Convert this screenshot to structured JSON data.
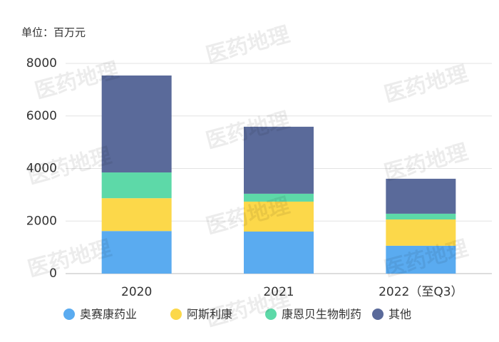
{
  "chart_data": {
    "type": "stacked_bar",
    "unit_label": "单位：百万元",
    "watermark": "医药地理",
    "categories": [
      "2020",
      "2021",
      "2022（至Q3）"
    ],
    "series": [
      {
        "name": "奥赛康药业",
        "color": "#5aabf0",
        "values": [
          1620,
          1600,
          1060
        ]
      },
      {
        "name": "阿斯利康",
        "color": "#fcd84a",
        "values": [
          1250,
          1140,
          1000
        ]
      },
      {
        "name": "康恩贝生物制药",
        "color": "#5dd9a8",
        "values": [
          980,
          300,
          220
        ]
      },
      {
        "name": "其他",
        "color": "#5a6a9a",
        "values": [
          3690,
          2550,
          1330
        ]
      }
    ],
    "ylim": [
      0,
      8000
    ],
    "yticks": [
      0,
      2000,
      4000,
      6000,
      8000
    ],
    "grid": true,
    "legend": "bottom"
  }
}
